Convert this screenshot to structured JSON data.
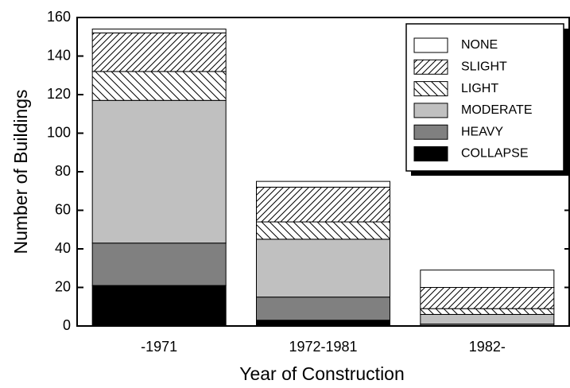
{
  "chart_data": {
    "type": "stacked-bar",
    "xlabel": "Year of Construction",
    "ylabel": "Number of Buildings",
    "categories": [
      "-1971",
      "1972-1981",
      "1982-"
    ],
    "series": [
      {
        "name": "NONE",
        "color": "#ffffff",
        "values": [
          2,
          3,
          9
        ]
      },
      {
        "name": "SLIGHT",
        "color": "#ffffff",
        "hatch": "forward",
        "values": [
          20,
          18,
          11
        ]
      },
      {
        "name": "LIGHT",
        "color": "#ffffff",
        "hatch": "backward",
        "values": [
          15,
          9,
          3
        ]
      },
      {
        "name": "MODERATE",
        "color": "#c0c0c0",
        "values": [
          74,
          30,
          5
        ]
      },
      {
        "name": "HEAVY",
        "color": "#808080",
        "values": [
          22,
          12,
          1
        ]
      },
      {
        "name": "COLLAPSE",
        "color": "#000000",
        "values": [
          21,
          3,
          0
        ]
      }
    ],
    "ylim": [
      0,
      160
    ],
    "yticks": [
      0,
      20,
      40,
      60,
      80,
      100,
      120,
      140,
      160
    ],
    "legend": "upper right"
  }
}
